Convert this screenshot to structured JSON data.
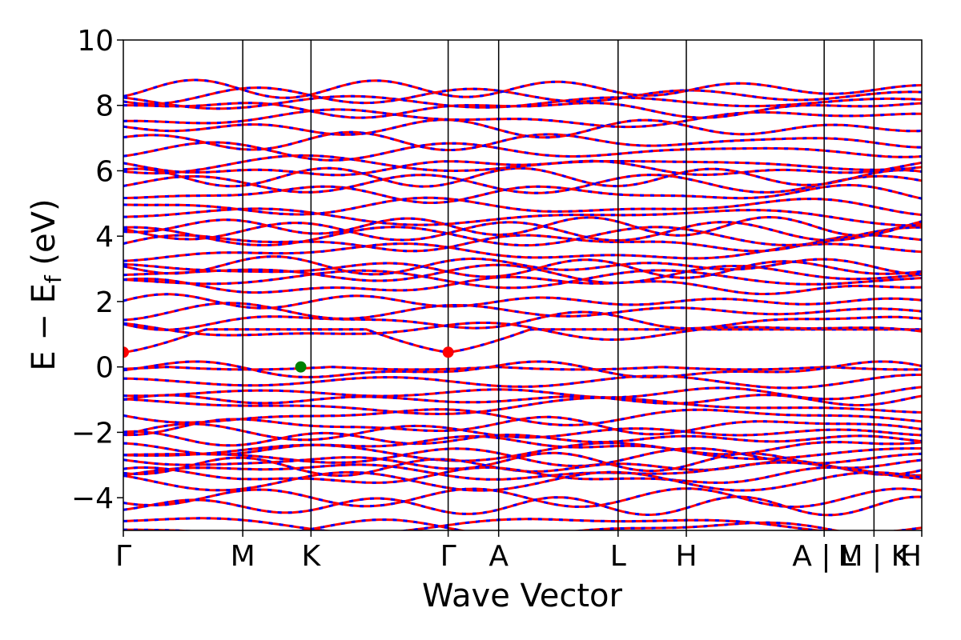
{
  "chart_data": {
    "type": "line",
    "title": "",
    "xlabel": "Wave Vector",
    "ylabel": "E − E",
    "ylabel_sub": "f",
    "ylabel_unit": " (eV)",
    "ylim": [
      -5,
      10
    ],
    "yticks": [
      -4,
      -2,
      0,
      2,
      4,
      6,
      8,
      10
    ],
    "ytick_labels": [
      "−4",
      "−2",
      "0",
      "2",
      "4",
      "6",
      "8",
      "10"
    ],
    "x_range": [
      0,
      11.7
    ],
    "kpoints": [
      {
        "label": "Γ",
        "x": 0.0
      },
      {
        "label": "M",
        "x": 1.75
      },
      {
        "label": "K",
        "x": 2.75
      },
      {
        "label": "Γ",
        "x": 4.76
      },
      {
        "label": "A",
        "x": 5.5
      },
      {
        "label": "L",
        "x": 7.25
      },
      {
        "label": "H",
        "x": 8.25
      },
      {
        "label": "A | L",
        "x": 10.27
      },
      {
        "label": "M | K",
        "x": 11.0
      },
      {
        "label": "H",
        "x": 11.7
      }
    ],
    "vertical_lines_at": [
      1.75,
      2.75,
      4.76,
      5.5,
      7.25,
      8.25,
      10.27,
      11.0
    ],
    "series_colors": {
      "spin_a": "#ff0000",
      "spin_b": "#0000ff"
    },
    "line_style": "red and blue dashed bands overlaid",
    "markers": [
      {
        "kind": "cbm",
        "x": 0.0,
        "y": 0.45,
        "color": "#ff0000"
      },
      {
        "kind": "cbm",
        "x": 4.76,
        "y": 0.45,
        "color": "#ff0000"
      },
      {
        "kind": "vbm",
        "x": 2.6,
        "y": 0.0,
        "color": "#008000"
      }
    ],
    "bands_approx": {
      "conduction": [
        0.45,
        1.1,
        1.4,
        1.7,
        2.0,
        2.5,
        2.7,
        2.85,
        3.0,
        3.1,
        3.5,
        3.8,
        4.0,
        4.15,
        4.3,
        4.6,
        4.9,
        5.3,
        5.6,
        5.8,
        6.1,
        6.2,
        6.6,
        6.9,
        7.3,
        7.6,
        7.9,
        8.1,
        8.3,
        8.5
      ],
      "valence": [
        0.0,
        -0.1,
        -0.45,
        -0.8,
        -1.0,
        -1.2,
        -1.5,
        -1.8,
        -2.0,
        -2.2,
        -2.4,
        -2.6,
        -2.75,
        -2.9,
        -3.05,
        -3.2,
        -3.35,
        -3.5,
        -4.0,
        -4.25,
        -4.8,
        -4.95
      ]
    },
    "grid": false,
    "legend": "none"
  }
}
